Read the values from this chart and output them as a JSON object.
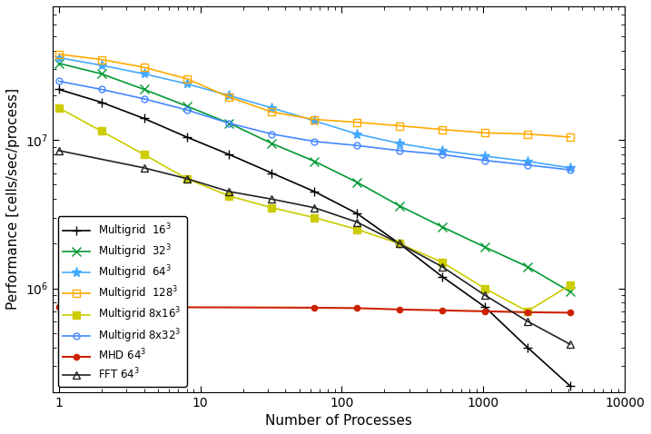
{
  "xlabel": "Number of Processes",
  "ylabel": "Performance [cells/sec/process]",
  "series": [
    {
      "label": "Multigrid  16$^3$",
      "color": "#000000",
      "marker": "+",
      "markersize": 7,
      "markerfacecolor": "#000000",
      "linewidth": 1.2,
      "x": [
        1,
        2,
        4,
        8,
        16,
        32,
        64,
        128,
        256,
        512,
        1024,
        2048,
        4096
      ],
      "y": [
        22000000.0,
        18000000.0,
        14000000.0,
        10500000.0,
        8000000.0,
        6000000.0,
        4500000.0,
        3200000.0,
        2000000.0,
        1200000.0,
        750000.0,
        400000.0,
        220000.0
      ]
    },
    {
      "label": "Multigrid  32$^3$",
      "color": "#009933",
      "marker": "x",
      "markersize": 7,
      "markerfacecolor": "#009933",
      "linewidth": 1.2,
      "x": [
        1,
        2,
        4,
        8,
        16,
        32,
        64,
        128,
        256,
        512,
        1024,
        2048,
        4096
      ],
      "y": [
        33000000.0,
        28000000.0,
        22000000.0,
        17000000.0,
        13000000.0,
        9500000.0,
        7200000.0,
        5200000.0,
        3600000.0,
        2600000.0,
        1900000.0,
        1400000.0,
        950000.0
      ]
    },
    {
      "label": "Multigrid  64$^3$",
      "color": "#44aaff",
      "marker": "*",
      "markersize": 8,
      "markerfacecolor": "#44aaff",
      "linewidth": 1.2,
      "x": [
        1,
        2,
        4,
        8,
        16,
        32,
        64,
        128,
        256,
        512,
        1024,
        2048,
        4096
      ],
      "y": [
        36000000.0,
        32000000.0,
        28000000.0,
        24000000.0,
        20000000.0,
        16500000.0,
        13500000.0,
        11000000.0,
        9500000.0,
        8500000.0,
        7800000.0,
        7200000.0,
        6500000.0
      ]
    },
    {
      "label": "Multigrid  128$^3$",
      "color": "#ffaa00",
      "marker": "s",
      "markersize": 6,
      "markerfacecolor": "none",
      "linewidth": 1.2,
      "x": [
        1,
        2,
        4,
        8,
        16,
        32,
        64,
        128,
        256,
        512,
        1024,
        2048,
        4096
      ],
      "y": [
        38000000.0,
        35000000.0,
        31000000.0,
        26000000.0,
        19500000.0,
        15500000.0,
        13800000.0,
        13200000.0,
        12500000.0,
        11800000.0,
        11200000.0,
        11000000.0,
        10500000.0
      ]
    },
    {
      "label": "Multigrid 8x16$^3$",
      "color": "#cccc00",
      "marker": "s",
      "markersize": 6,
      "markerfacecolor": "#cccc00",
      "linewidth": 1.2,
      "x": [
        1,
        2,
        4,
        8,
        16,
        32,
        64,
        128,
        256,
        512,
        1024,
        2048,
        4096
      ],
      "y": [
        16500000.0,
        11500000.0,
        8000000.0,
        5500000.0,
        4200000.0,
        3500000.0,
        3000000.0,
        2500000.0,
        2000000.0,
        1500000.0,
        1000000.0,
        700000.0,
        1050000.0
      ]
    },
    {
      "label": "Multigrid 8x32$^3$",
      "color": "#4488ff",
      "marker": "o",
      "markersize": 5,
      "markerfacecolor": "none",
      "linewidth": 1.2,
      "x": [
        1,
        2,
        4,
        8,
        16,
        32,
        64,
        128,
        256,
        512,
        1024,
        2048,
        4096
      ],
      "y": [
        25000000.0,
        22000000.0,
        19000000.0,
        16000000.0,
        13000000.0,
        11000000.0,
        9800000.0,
        9200000.0,
        8500000.0,
        8000000.0,
        7300000.0,
        6800000.0,
        6300000.0
      ]
    },
    {
      "label": "MHD 64$^3$",
      "color": "#cc2200",
      "marker": ".",
      "markersize": 9,
      "markerfacecolor": "#cc2200",
      "linewidth": 1.5,
      "x": [
        1,
        64,
        128,
        256,
        512,
        1024,
        2048,
        4096
      ],
      "y": [
        750000.0,
        740000.0,
        735000.0,
        720000.0,
        710000.0,
        700000.0,
        690000.0,
        685000.0
      ]
    },
    {
      "label": "FFT 64$^3$",
      "color": "#222222",
      "marker": "^",
      "markersize": 6,
      "markerfacecolor": "none",
      "linewidth": 1.2,
      "x": [
        1,
        4,
        8,
        16,
        32,
        64,
        128,
        256,
        512,
        1024,
        2048,
        4096
      ],
      "y": [
        8500000.0,
        6500000.0,
        5500000.0,
        4500000.0,
        4000000.0,
        3500000.0,
        2800000.0,
        2000000.0,
        1400000.0,
        900000.0,
        600000.0,
        420000.0
      ]
    }
  ],
  "xlim_low": 0.9,
  "xlim_high": 10000,
  "ylim_low": 200000.0,
  "ylim_high": 80000000.0,
  "legend_loc": "lower left",
  "background_color": "#ffffff",
  "yticks": [
    1000000,
    10000000
  ],
  "xticks": [
    1,
    10,
    100,
    1000,
    10000
  ]
}
